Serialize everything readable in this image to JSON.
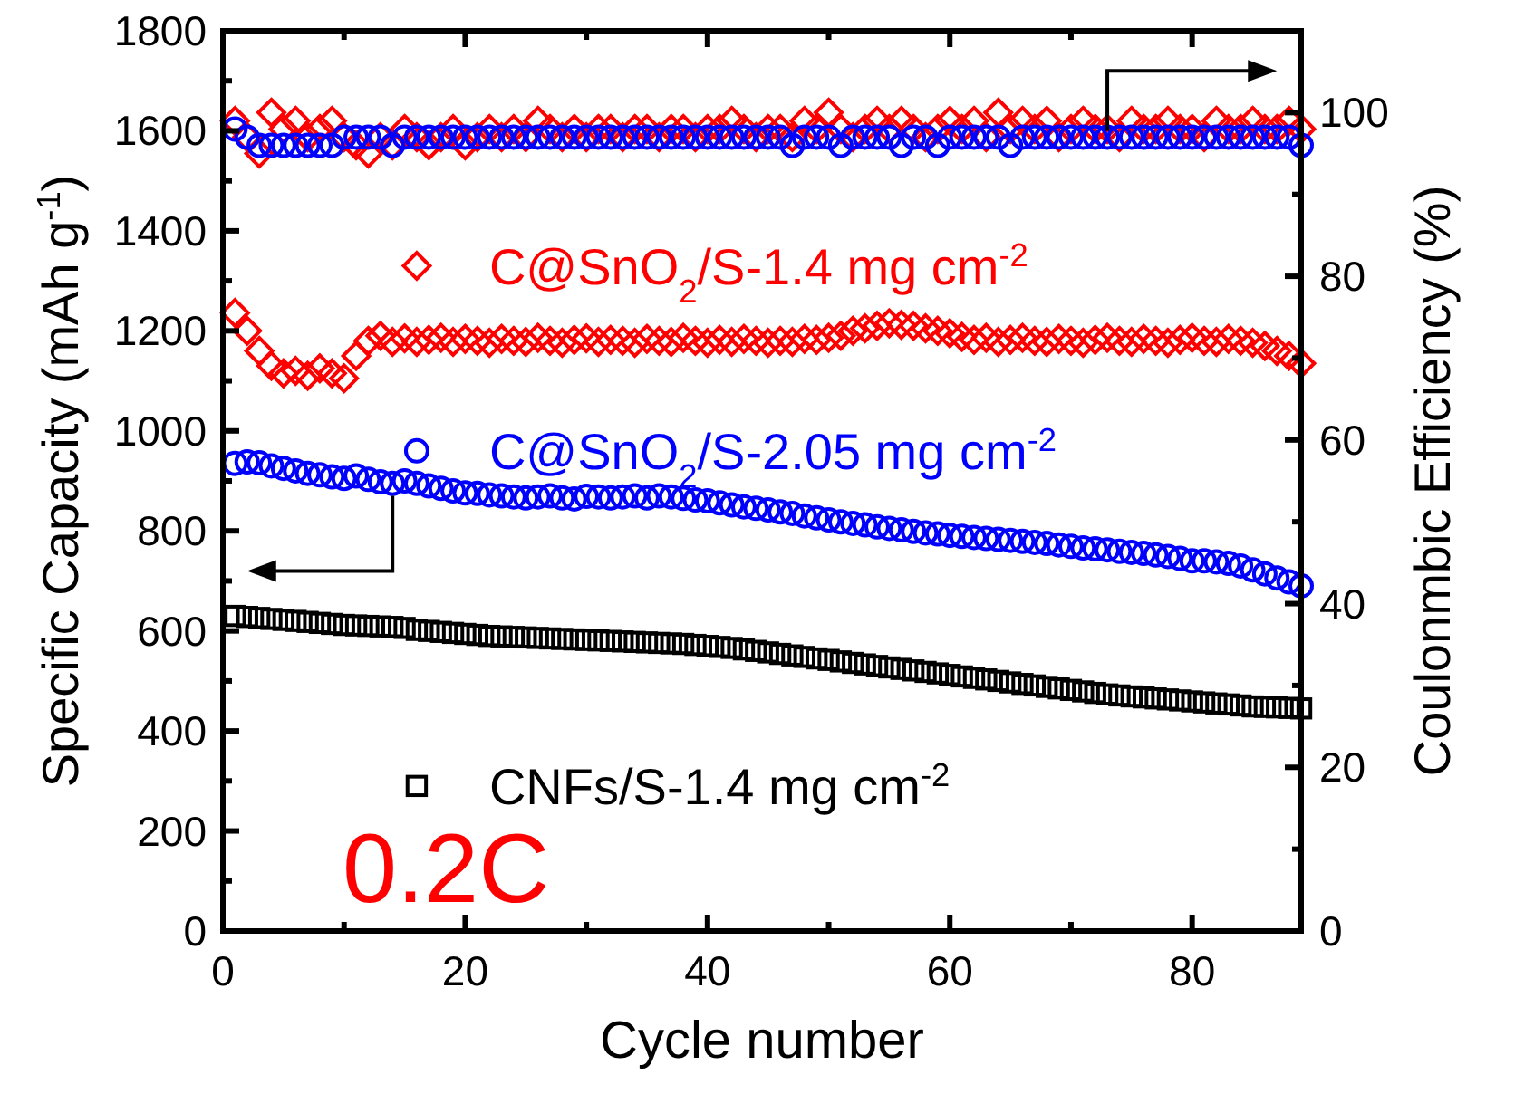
{
  "chart_data": {
    "type": "scatter",
    "xlabel": "Cycle number",
    "ylabel": "Specific Capacity (mAh g$^{-1}$)",
    "y2label": "Coulonmbic Efficiency (%)",
    "x": [
      1,
      2,
      3,
      4,
      5,
      6,
      7,
      8,
      9,
      10,
      11,
      12,
      13,
      14,
      15,
      16,
      17,
      18,
      19,
      20,
      21,
      22,
      23,
      24,
      25,
      26,
      27,
      28,
      29,
      30,
      31,
      32,
      33,
      34,
      35,
      36,
      37,
      38,
      39,
      40,
      41,
      42,
      43,
      44,
      45,
      46,
      47,
      48,
      49,
      50,
      51,
      52,
      53,
      54,
      55,
      56,
      57,
      58,
      59,
      60,
      61,
      62,
      63,
      64,
      65,
      66,
      67,
      68,
      69,
      70,
      71,
      72,
      73,
      74,
      75,
      76,
      77,
      78,
      79,
      80,
      81,
      82,
      83,
      84,
      85,
      86,
      87,
      88,
      89
    ],
    "xlim": [
      0,
      89
    ],
    "xticks": [
      0,
      {
        "value": 10,
        "label": null
      },
      20,
      {
        "value": 30,
        "label": null
      },
      40,
      {
        "value": 50,
        "label": null
      },
      60,
      {
        "value": 70,
        "label": null
      },
      80
    ],
    "ylim": [
      0,
      1800
    ],
    "yticks": [
      0,
      {
        "value": 100,
        "label": null
      },
      200,
      {
        "value": 300,
        "label": null
      },
      400,
      {
        "value": 500,
        "label": null
      },
      600,
      {
        "value": 700,
        "label": null
      },
      800,
      {
        "value": 900,
        "label": null
      },
      1000,
      {
        "value": 1100,
        "label": null
      },
      1200,
      {
        "value": 1300,
        "label": null
      },
      1400,
      {
        "value": 1500,
        "label": null
      },
      1600,
      {
        "value": 1700,
        "label": null
      },
      1800
    ],
    "y2lim": [
      0,
      110
    ],
    "y2ticks": [
      0,
      {
        "value": 10,
        "label": null
      },
      20,
      {
        "value": 30,
        "label": null
      },
      40,
      {
        "value": 50,
        "label": null
      },
      60,
      {
        "value": 70,
        "label": null
      },
      80,
      {
        "value": 90,
        "label": null
      },
      100
    ],
    "grid": false,
    "legend": "right",
    "annotations": [
      "0.2C"
    ],
    "series": [
      {
        "name": "C@SnO$_{2}$/S-1.4 mg cm$^{-2}$",
        "color": "#ff0000",
        "marker": "diamond",
        "values": [
          1236,
          1200,
          1160,
          1130,
          1115,
          1120,
          1110,
          1125,
          1115,
          1105,
          1150,
          1180,
          1190,
          1178,
          1185,
          1178,
          1182,
          1186,
          1178,
          1184,
          1180,
          1176,
          1184,
          1180,
          1178,
          1186,
          1180,
          1176,
          1182,
          1185,
          1178,
          1182,
          1180,
          1176,
          1184,
          1180,
          1178,
          1186,
          1180,
          1176,
          1182,
          1178,
          1184,
          1180,
          1176,
          1180,
          1178,
          1184,
          1182,
          1186,
          1190,
          1200,
          1205,
          1210,
          1215,
          1212,
          1210,
          1205,
          1200,
          1195,
          1188,
          1182,
          1186,
          1178,
          1182,
          1186,
          1180,
          1178,
          1184,
          1180,
          1176,
          1182,
          1186,
          1180,
          1178,
          1184,
          1180,
          1176,
          1182,
          1186,
          1180,
          1178,
          1184,
          1180,
          1176,
          1170,
          1160,
          1150,
          1135
        ]
      },
      {
        "name": "C@SnO$_{2}$/S-2.05 mg cm$^{-2}$",
        "color": "#0000ff",
        "marker": "circle",
        "values": [
          935,
          938,
          936,
          930,
          925,
          920,
          915,
          912,
          908,
          905,
          910,
          903,
          898,
          895,
          900,
          895,
          890,
          885,
          880,
          876,
          875,
          872,
          870,
          868,
          866,
          868,
          870,
          866,
          864,
          869,
          868,
          866,
          868,
          870,
          866,
          870,
          868,
          865,
          862,
          860,
          856,
          852,
          848,
          845,
          842,
          838,
          835,
          830,
          826,
          822,
          818,
          815,
          812,
          808,
          805,
          802,
          799,
          796,
          794,
          791,
          789,
          787,
          785,
          783,
          781,
          779,
          777,
          775,
          772,
          769,
          766,
          764,
          762,
          759,
          757,
          755,
          752,
          749,
          745,
          740,
          740,
          738,
          735,
          730,
          722,
          714,
          706,
          698,
          690
        ]
      },
      {
        "name": "CNFs/S-1.4 mg cm$^{-2}$",
        "color": "#000000",
        "marker": "square",
        "values": [
          630,
          628,
          626,
          624,
          622,
          620,
          618,
          616,
          614,
          612,
          611,
          610,
          609,
          608,
          606,
          602,
          600,
          598,
          596,
          594,
          592,
          590,
          589,
          588,
          587,
          586,
          585,
          584,
          583,
          582,
          581,
          580,
          579,
          578,
          577,
          576,
          575,
          574,
          572,
          570,
          568,
          566,
          563,
          560,
          557,
          554,
          551,
          548,
          545,
          542,
          539,
          536,
          533,
          530,
          527,
          524,
          521,
          518,
          515,
          512,
          509,
          506,
          503,
          500,
          497,
          494,
          491,
          488,
          485,
          482,
          479,
          476,
          473,
          471,
          469,
          467,
          465,
          463,
          461,
          459,
          457,
          455,
          453,
          451,
          449,
          448,
          447,
          446,
          445
        ]
      },
      {
        "color": "#ff0000",
        "marker": "diamond",
        "axis": "y2",
        "values": [
          99,
          97,
          95,
          100,
          98,
          99,
          97,
          98,
          99,
          97,
          96,
          95,
          97,
          96,
          98,
          97,
          96,
          97,
          98,
          96,
          97,
          98,
          97,
          98,
          97,
          99,
          98,
          97,
          98,
          97,
          98,
          98,
          97,
          98,
          98,
          97,
          98,
          98,
          97,
          98,
          98,
          99,
          98,
          97,
          98,
          98,
          97,
          99,
          98,
          100,
          98,
          97,
          98,
          99,
          98,
          99,
          98,
          97,
          98,
          99,
          98,
          99,
          97,
          100,
          98,
          99,
          98,
          99,
          97,
          98,
          99,
          98,
          98,
          97,
          99,
          98,
          98,
          99,
          98,
          98,
          97,
          99,
          98,
          98,
          99,
          98,
          98,
          99,
          98
        ]
      },
      {
        "color": "#0000ff",
        "marker": "circle",
        "axis": "y2",
        "values": [
          98,
          97,
          96,
          96,
          96,
          96,
          96,
          96,
          96,
          97,
          97,
          97,
          97,
          96,
          97,
          97,
          97,
          97,
          97,
          97,
          97,
          97,
          97,
          97,
          97,
          97,
          97,
          97,
          97,
          97,
          97,
          97,
          97,
          97,
          97,
          97,
          97,
          97,
          97,
          97,
          97,
          97,
          97,
          97,
          97,
          97,
          96,
          97,
          97,
          97,
          96,
          97,
          97,
          97,
          97,
          96,
          97,
          97,
          96,
          97,
          97,
          97,
          97,
          97,
          96,
          97,
          97,
          97,
          97,
          97,
          97,
          97,
          97,
          97,
          97,
          97,
          97,
          97,
          97,
          97,
          97,
          97,
          97,
          97,
          97,
          97,
          97,
          97,
          96
        ]
      }
    ]
  }
}
